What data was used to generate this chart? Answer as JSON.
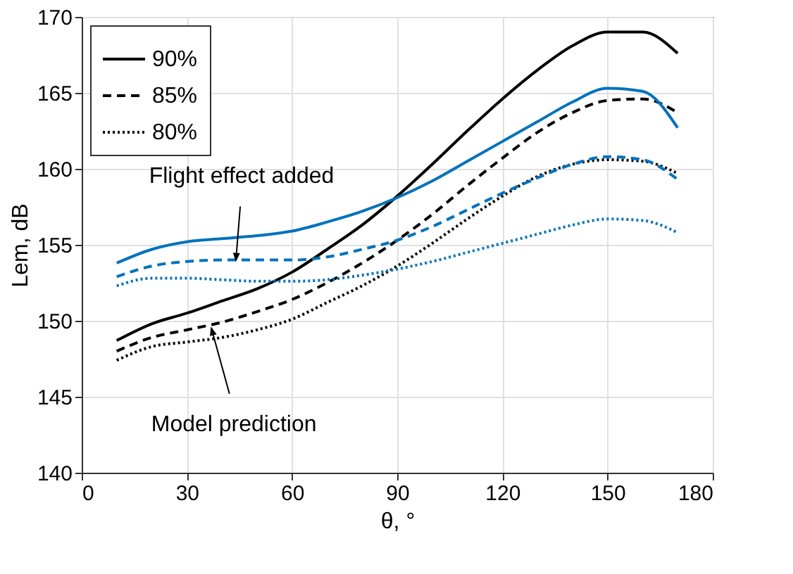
{
  "chart_data": {
    "type": "line",
    "xlabel": "θ, °",
    "ylabel": "Lem, dB",
    "x": [
      10,
      20,
      30,
      40,
      50,
      60,
      70,
      80,
      90,
      100,
      110,
      120,
      130,
      140,
      150,
      160,
      170
    ],
    "xlim": [
      0,
      180
    ],
    "xticks": [
      0,
      30,
      60,
      90,
      120,
      150,
      180
    ],
    "ylim": [
      140,
      170
    ],
    "yticks": [
      140,
      145,
      150,
      155,
      160,
      165,
      170
    ],
    "grid": true,
    "legend": "top left",
    "marker": "none",
    "series": [
      {
        "name": "90%",
        "color": "#000000",
        "line_style": "solid",
        "values": [
          148.7,
          149.8,
          150.5,
          151.3,
          152.1,
          153.2,
          154.7,
          156.3,
          158.2,
          160.3,
          162.5,
          164.6,
          166.5,
          168.1,
          169.0,
          169.0,
          167.6
        ]
      },
      {
        "name": "85%",
        "color": "#000000",
        "line_style": "dashed",
        "values": [
          148.0,
          148.9,
          149.4,
          149.9,
          150.6,
          151.4,
          152.5,
          153.8,
          155.3,
          157.0,
          158.9,
          160.7,
          162.4,
          163.7,
          164.5,
          164.6,
          163.7
        ]
      },
      {
        "name": "80%",
        "color": "#000000",
        "line_style": "dotted",
        "values": [
          147.4,
          148.3,
          148.6,
          148.9,
          149.4,
          150.1,
          151.2,
          152.3,
          153.6,
          155.1,
          156.7,
          158.2,
          159.5,
          160.3,
          160.6,
          160.5,
          159.7
        ]
      },
      {
        "color": "#0072bd",
        "line_style": "solid",
        "values": [
          153.8,
          154.7,
          155.2,
          155.4,
          155.6,
          155.9,
          156.5,
          157.2,
          158.1,
          159.2,
          160.5,
          161.8,
          163.1,
          164.4,
          165.3,
          165.1,
          162.7
        ]
      },
      {
        "color": "#0072bd",
        "line_style": "dashed",
        "values": [
          152.9,
          153.6,
          153.9,
          154.0,
          154.0,
          154.0,
          154.2,
          154.7,
          155.3,
          156.2,
          157.3,
          158.4,
          159.4,
          160.3,
          160.8,
          160.6,
          159.3
        ]
      },
      {
        "color": "#0072bd",
        "line_style": "dotted",
        "values": [
          152.3,
          152.8,
          152.8,
          152.7,
          152.6,
          152.6,
          152.7,
          153.0,
          153.4,
          153.9,
          154.5,
          155.1,
          155.7,
          156.3,
          156.7,
          156.6,
          155.8
        ]
      }
    ],
    "annotations": [
      {
        "text": "Flight effect added",
        "x": 44,
        "y": 154.0
      },
      {
        "text": "Model prediction",
        "x": 37,
        "y": 149.5
      }
    ]
  }
}
